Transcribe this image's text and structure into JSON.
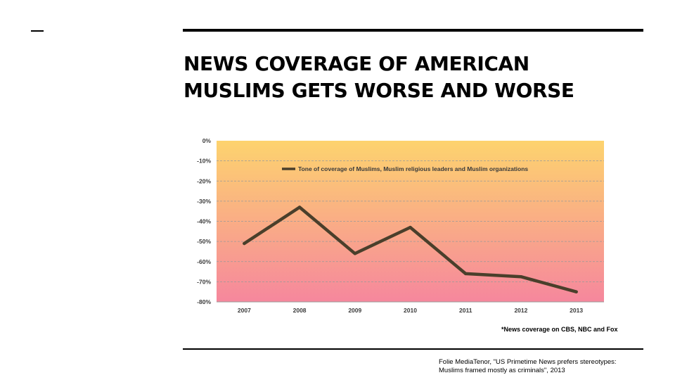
{
  "slide": {
    "title_line1": "NEWS COVERAGE OF AMERICAN",
    "title_line2": "MUSLIMS GETS WORSE AND WORSE",
    "footnote": "*News coverage on CBS, NBC and Fox",
    "source_line1": "Folie MediaTenor, \"US Primetime News prefers stereotypes:",
    "source_line2": "Muslims framed mostly as criminals\", 2013"
  },
  "colors": {
    "line": "#4a3f2b",
    "gradient_top": "#fdd36e",
    "gradient_bottom": "#f6879d",
    "grid": "#999999"
  },
  "chart_data": {
    "type": "line",
    "title": "",
    "xlabel": "",
    "ylabel": "",
    "categories": [
      "2007",
      "2008",
      "2009",
      "2010",
      "2011",
      "2012",
      "2013"
    ],
    "series": [
      {
        "name": "Tone of coverage of Muslims, Muslim religious leaders and Muslim organizations",
        "values": [
          -51,
          -33,
          -56,
          -43,
          -66,
          -67.5,
          -75
        ]
      }
    ],
    "ylim": [
      -80,
      0
    ],
    "yticks": [
      0,
      -10,
      -20,
      -30,
      -40,
      -50,
      -60,
      -70,
      -80
    ],
    "ytick_labels": [
      "0%",
      "-10%",
      "-20%",
      "-30%",
      "-40%",
      "-50%",
      "-60%",
      "-70%",
      "-80%"
    ],
    "grid": true,
    "legend_position": "top"
  }
}
